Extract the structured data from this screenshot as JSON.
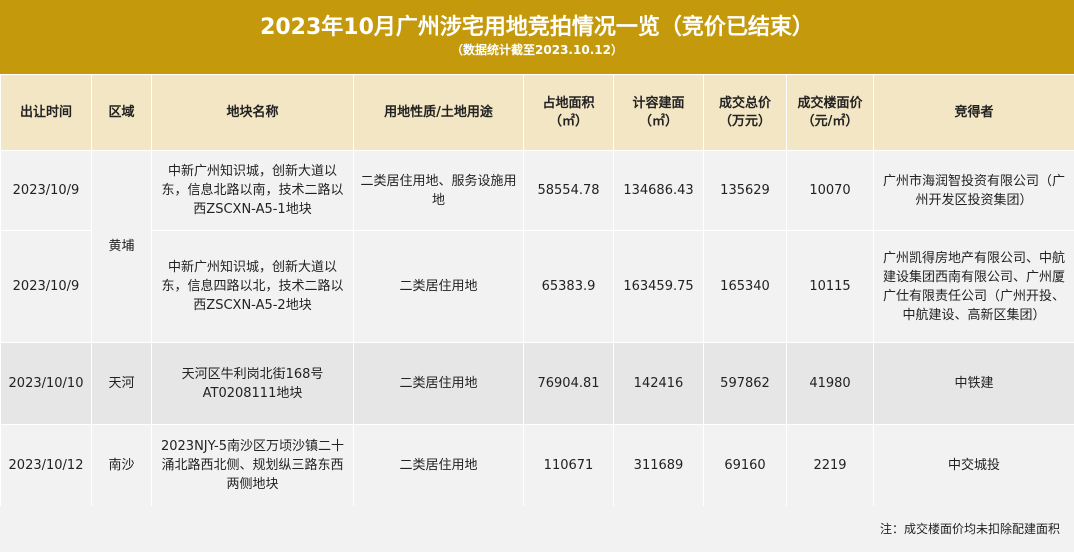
{
  "header": {
    "title": "2023年10月广州涉宅用地竞拍情况一览（竞价已结束）",
    "subtitle": "（数据统计截至2023.10.12）"
  },
  "columns": [
    "出让时间",
    "区域",
    "地块名称",
    "用地性质/土地用途",
    "占地面积\n（㎡）",
    "计容建面\n（㎡）",
    "成交总价\n（万元）",
    "成交楼面价\n（元/㎡）",
    "竞得者"
  ],
  "rows": [
    {
      "date": "2023/10/9",
      "district": "黄埔",
      "parcel": "中新广州知识城，创新大道以东，信息北路以南，技术二路以西ZSCXN-A5-1地块",
      "use": "二类居住用地、服务设施用地",
      "area": "58554.78",
      "gfa": "134686.43",
      "total_price": "135629",
      "floor_price": "10070",
      "winner": "广州市海润智投资有限公司（广州开发区投资集团）"
    },
    {
      "date": "2023/10/9",
      "district": "黄埔",
      "parcel": "中新广州知识城，创新大道以东，信息四路以北，技术二路以西ZSCXN-A5-2地块",
      "use": "二类居住用地",
      "area": "65383.9",
      "gfa": "163459.75",
      "total_price": "165340",
      "floor_price": "10115",
      "winner": "广州凯得房地产有限公司、中航建设集团西南有限公司、广州厦广仕有限责任公司（广州开投、中航建设、高新区集团）"
    },
    {
      "date": "2023/10/10",
      "district": "天河",
      "parcel": "天河区牛利岗北街168号AT0208111地块",
      "use": "二类居住用地",
      "area": "76904.81",
      "gfa": "142416",
      "total_price": "597862",
      "floor_price": "41980",
      "winner": "中铁建"
    },
    {
      "date": "2023/10/12",
      "district": "南沙",
      "parcel": "2023NJY-5南沙区万顷沙镇二十涌北路西北侧、规划纵三路东西两侧地块",
      "use": "二类居住用地",
      "area": "110671",
      "gfa": "311689",
      "total_price": "69160",
      "floor_price": "2219",
      "winner": "中交城投"
    }
  ],
  "footnote": "注：成交楼面价均未扣除配建面积"
}
